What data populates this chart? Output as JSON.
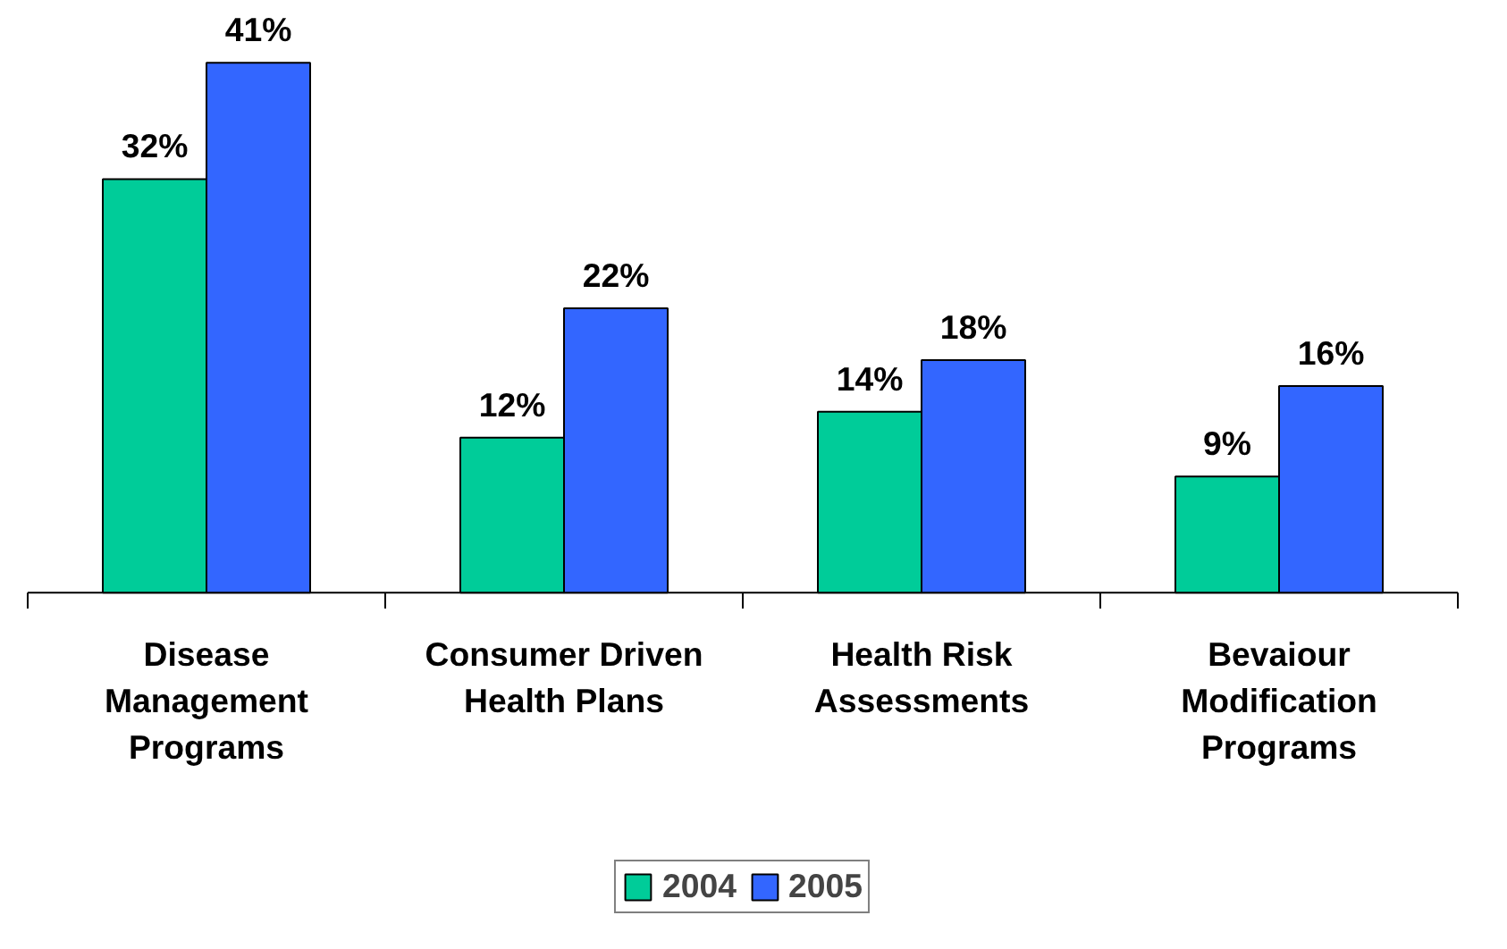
{
  "chart_data": {
    "type": "bar",
    "categories": [
      "Disease Management Programs",
      "Consumer Driven Health Plans",
      "Health Risk Assessments",
      "Bevaiour Modification Programs"
    ],
    "series": [
      {
        "name": "2004",
        "color": "#00cc99",
        "values": [
          32,
          12,
          14,
          9
        ],
        "value_labels": [
          "32%",
          "12%",
          "14%",
          "9%"
        ]
      },
      {
        "name": "2005",
        "color": "#3366ff",
        "values": [
          41,
          22,
          18,
          16
        ],
        "value_labels": [
          "41%",
          "22%",
          "18%",
          "16%"
        ]
      }
    ],
    "tick_labels": "x",
    "legend": "bottom"
  }
}
